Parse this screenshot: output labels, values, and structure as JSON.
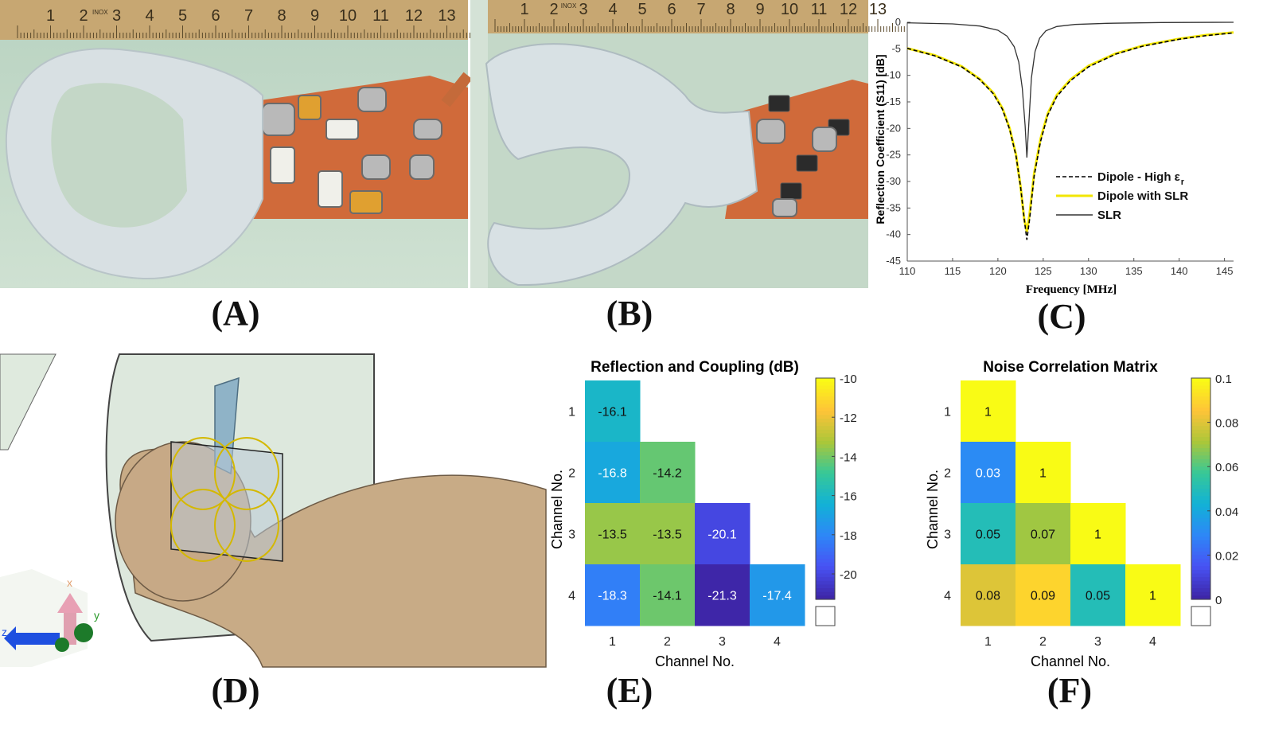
{
  "figure": {
    "labels": {
      "a": "(A)",
      "b": "(B)",
      "c": "(C)",
      "d": "(D)",
      "e": "(E)",
      "f": "(F)"
    },
    "ruler_numbers": [
      "1",
      "2",
      "3",
      "4",
      "5",
      "6",
      "7",
      "8",
      "9",
      "10",
      "11",
      "12",
      "13"
    ],
    "ruler_brand": "INOX",
    "axis_triad": {
      "x": "x",
      "y": "y",
      "z": "z"
    }
  },
  "colors": {
    "phantom": "#d9e2e6",
    "pcb": "#d36c3c",
    "water": "#c6d9c9",
    "ruler": "#c8a978",
    "skin": "#c8ab86",
    "coil_ring": "#d4b800"
  },
  "chart_data": [
    {
      "type": "line",
      "xlabel": "Frequency [MHz]",
      "ylabel": "Reflection Coefficient (S11) [dB]",
      "xlim": [
        110,
        146
      ],
      "ylim": [
        -45,
        0
      ],
      "xticks": [
        110,
        115,
        120,
        125,
        130,
        135,
        140,
        145
      ],
      "yticks": [
        0,
        -5,
        -10,
        -15,
        -20,
        -25,
        -30,
        -35,
        -40,
        -45
      ],
      "legend_position": "right",
      "series": [
        {
          "name": "Dipole - High ε",
          "name_subscript": "r",
          "style": "dashed",
          "color": "#000000",
          "x": [
            110,
            113,
            116,
            118,
            119.5,
            120.5,
            121.3,
            122,
            122.5,
            122.9,
            123.2,
            123.5,
            124,
            124.7,
            125.5,
            126.5,
            128,
            130,
            133,
            136,
            140,
            143,
            146
          ],
          "y": [
            -4.9,
            -6.3,
            -8.4,
            -10.8,
            -13.5,
            -16.4,
            -20.2,
            -25.2,
            -31,
            -37,
            -41,
            -37,
            -29,
            -22.5,
            -17.5,
            -14,
            -11,
            -8.4,
            -6,
            -4.5,
            -3.2,
            -2.5,
            -2
          ]
        },
        {
          "name": "Dipole with SLR",
          "style": "solid",
          "color": "#f2e600",
          "x": [
            110,
            113,
            116,
            118,
            119.5,
            120.5,
            121.3,
            122,
            122.5,
            122.9,
            123.2,
            123.5,
            124,
            124.7,
            125.5,
            126.5,
            128,
            130,
            133,
            136,
            140,
            143,
            146
          ],
          "y": [
            -4.9,
            -6.2,
            -8.3,
            -10.7,
            -13.3,
            -16.2,
            -20,
            -25,
            -31,
            -37,
            -39.5,
            -36,
            -28.5,
            -22,
            -17.2,
            -13.7,
            -10.8,
            -8.2,
            -5.9,
            -4.4,
            -3.1,
            -2.4,
            -1.9
          ]
        },
        {
          "name": "SLR",
          "style": "solid",
          "color": "#333333",
          "x": [
            110,
            115,
            118,
            120,
            121,
            121.8,
            122.3,
            122.7,
            123,
            123.2,
            123.4,
            123.7,
            124.1,
            124.6,
            125.3,
            126.5,
            128.5,
            132,
            138,
            146
          ],
          "y": [
            -0.1,
            -0.3,
            -0.7,
            -1.5,
            -2.6,
            -4.6,
            -7.5,
            -12.5,
            -19.5,
            -25.5,
            -19.5,
            -10.5,
            -5.5,
            -3,
            -1.6,
            -0.8,
            -0.4,
            -0.2,
            -0.05,
            0
          ]
        }
      ]
    },
    {
      "type": "heatmap",
      "title": "Reflection and Coupling (dB)",
      "xlabel": "Channel No.",
      "ylabel": "Channel No.",
      "categories": [
        "1",
        "2",
        "3",
        "4"
      ],
      "cells": [
        {
          "row": 1,
          "col": 1,
          "value": "-16.1"
        },
        {
          "row": 2,
          "col": 1,
          "value": "-16.8"
        },
        {
          "row": 2,
          "col": 2,
          "value": "-14.2"
        },
        {
          "row": 3,
          "col": 1,
          "value": "-13.5"
        },
        {
          "row": 3,
          "col": 2,
          "value": "-13.5"
        },
        {
          "row": 3,
          "col": 3,
          "value": "-20.1"
        },
        {
          "row": 4,
          "col": 1,
          "value": "-18.3"
        },
        {
          "row": 4,
          "col": 2,
          "value": "-14.1"
        },
        {
          "row": 4,
          "col": 3,
          "value": "-21.3"
        },
        {
          "row": 4,
          "col": 4,
          "value": "-17.4"
        }
      ],
      "clim": [
        -21.3,
        -10
      ],
      "colorbar_ticks": [
        "-10",
        "-12",
        "-14",
        "-16",
        "-18",
        "-20"
      ]
    },
    {
      "type": "heatmap",
      "title": "Noise Correlation Matrix",
      "xlabel": "Channel No.",
      "ylabel": "Channel No.",
      "categories": [
        "1",
        "2",
        "3",
        "4"
      ],
      "cells": [
        {
          "row": 1,
          "col": 1,
          "value": "1"
        },
        {
          "row": 2,
          "col": 1,
          "value": "0.03"
        },
        {
          "row": 2,
          "col": 2,
          "value": "1"
        },
        {
          "row": 3,
          "col": 1,
          "value": "0.05"
        },
        {
          "row": 3,
          "col": 2,
          "value": "0.07"
        },
        {
          "row": 3,
          "col": 3,
          "value": "1"
        },
        {
          "row": 4,
          "col": 1,
          "value": "0.08"
        },
        {
          "row": 4,
          "col": 2,
          "value": "0.09"
        },
        {
          "row": 4,
          "col": 3,
          "value": "0.05"
        },
        {
          "row": 4,
          "col": 4,
          "value": "1"
        }
      ],
      "clim": [
        0,
        0.1
      ],
      "colorbar_ticks": [
        "0.1",
        "0.08",
        "0.06",
        "0.04",
        "0.02",
        "0"
      ]
    }
  ]
}
